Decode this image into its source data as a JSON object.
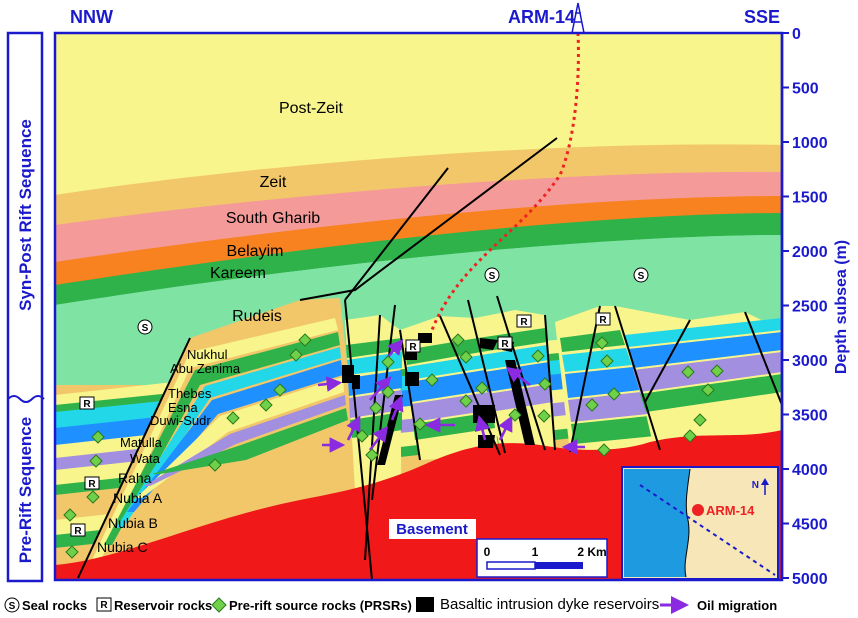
{
  "header": {
    "left_direction": "NNW",
    "well_name": "ARM-14",
    "right_direction": "SSE"
  },
  "left_axis": {
    "upper_sequence": "Syn-Post Rift Sequence",
    "lower_sequence": "Pre-Rift Sequence"
  },
  "depth_axis": {
    "title": "Depth subsea (m)",
    "ticks": [
      "0",
      "500",
      "1000",
      "1500",
      "2000",
      "2500",
      "3000",
      "3500",
      "4000",
      "4500",
      "5000"
    ]
  },
  "layers": {
    "post_zeit": "Post-Zeit",
    "zeit": "Zeit",
    "south_gharib": "South Gharib",
    "belayim": "Belayim",
    "kareem": "Kareem",
    "rudeis": "Rudeis",
    "nukhul": "Nukhul",
    "abu_zenima": "Abu Zenima",
    "thebes": "Thebes",
    "esna": "Esna",
    "duwi_sudr": "Duwi-Sudr",
    "matulla": "Matulla",
    "wata": "Wata",
    "raha": "Raha",
    "nubia_a": "Nubia A",
    "nubia_b": "Nubia B",
    "nubia_c": "Nubia C",
    "basement": "Basement"
  },
  "symbols": {
    "seal": "S",
    "reservoir": "R"
  },
  "scale_bar": {
    "ticks": [
      "0",
      "1",
      "2 Km"
    ]
  },
  "inset_map": {
    "well_label": "ARM-14",
    "north": "N"
  },
  "legend": {
    "seal": "Seal rocks",
    "reservoir": "Reservoir rocks",
    "source": "Pre-rift source rocks (PRSRs)",
    "dyke": "Basaltic intrusion dyke reservoirs",
    "migration": "Oil migration"
  },
  "colors": {
    "frame": "#1a1acc",
    "post_zeit": "#f8f58c",
    "zeit": "#f2c76a",
    "south_gharib": "#f49a98",
    "belayim": "#f7821f",
    "kareem": "#2fb24a",
    "rudeis": "#7fe3a3",
    "basement": "#f01818",
    "oil_migration": "#8a2be2",
    "well_track": "#ee2222"
  }
}
